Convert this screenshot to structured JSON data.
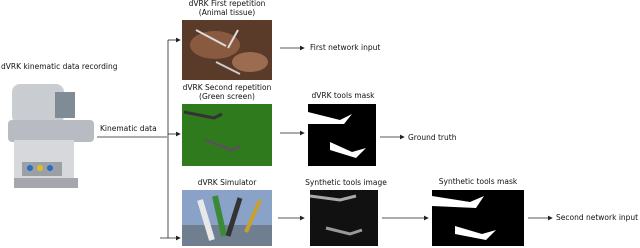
{
  "left": {
    "title": "dVRK kinematic data recording",
    "edge_label": "Kinematic data"
  },
  "row1": {
    "title": [
      "dVRK First repetition",
      "(Animal tissue)"
    ],
    "output": "First network input"
  },
  "row2": {
    "title": [
      "dVRK Second repetition",
      "(Green screen)"
    ],
    "mask_title": "dVRK tools mask",
    "output": "Ground truth"
  },
  "row3": {
    "title": "dVRK Simulator",
    "image_title": "Synthetic tools image",
    "mask_title": "Synthetic tools mask",
    "output": "Second network input"
  }
}
